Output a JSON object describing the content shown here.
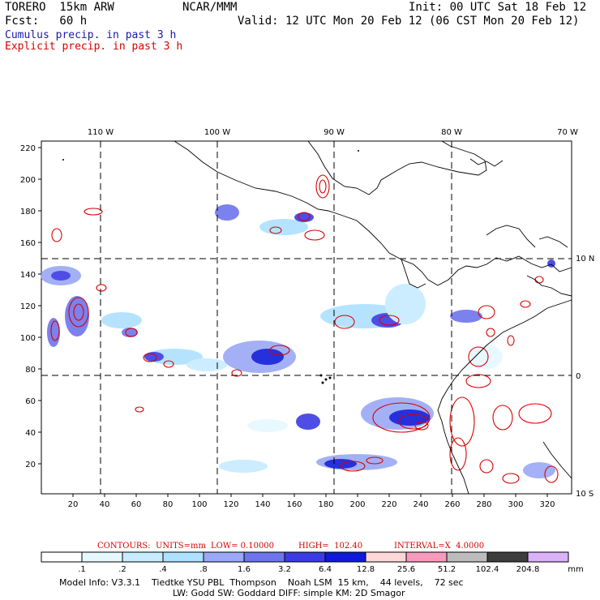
{
  "header": {
    "model": "TORERO  15km ARW",
    "org": "NCAR/MMM",
    "init": "Init: 00 UTC Sat 18 Feb 12",
    "fcst": "Fcst:   60 h",
    "valid": "Valid: 12 UTC Mon 20 Feb 12 (06 CST Mon 20 Feb 12)",
    "cumulus_label": "Cumulus precip. in past 3 h",
    "explicit_label": "Explicit precip. in past 3 h"
  },
  "colors": {
    "cumulus": "#1a1aa6",
    "explicit": "#d80000"
  },
  "axes": {
    "lon_labels": [
      "110 W",
      "100 W",
      "90 W",
      "80 W",
      "70 W"
    ],
    "lat_labels": [
      "10 N",
      "0",
      "10 S"
    ],
    "y_ticks": [
      "220",
      "200",
      "180",
      "160",
      "140",
      "120",
      "100",
      "80",
      "60",
      "40",
      "20"
    ],
    "x_ticks": [
      "20",
      "40",
      "60",
      "80",
      "100",
      "120",
      "140",
      "160",
      "180",
      "200",
      "220",
      "240",
      "260",
      "280",
      "300",
      "320"
    ]
  },
  "contours_text": {
    "label": "CONTOURS:",
    "units": "UNITS=mm",
    "low": "LOW= 0.10000",
    "high": "HIGH=  102.40",
    "interval": "INTERVAL=X  4.0000"
  },
  "colorbar": {
    "colors": [
      "#ffffff",
      "#e6f8ff",
      "#c6ecff",
      "#aee0ff",
      "#9aa8f5",
      "#6d74ec",
      "#3b3be4",
      "#0f1ad8",
      "#ffd7d7",
      "#f79bbd",
      "#bcbcbc",
      "#3d3d3d",
      "#d9b2f7"
    ],
    "labels": [
      ".1",
      ".2",
      ".4",
      ".8",
      "1.6",
      "3.2",
      "6.4",
      "12.8",
      "25.6",
      "51.2",
      "102.4",
      "204.8"
    ],
    "unit": "mm"
  },
  "footer": {
    "line1": "Model Info: V3.3.1    Tiedtke YSU PBL  Thompson    Noah LSM  15 km,    44 levels,    72 sec",
    "line2": "LW: Godd SW: Goddard DIFF: simple KM: 2D Smagor"
  }
}
